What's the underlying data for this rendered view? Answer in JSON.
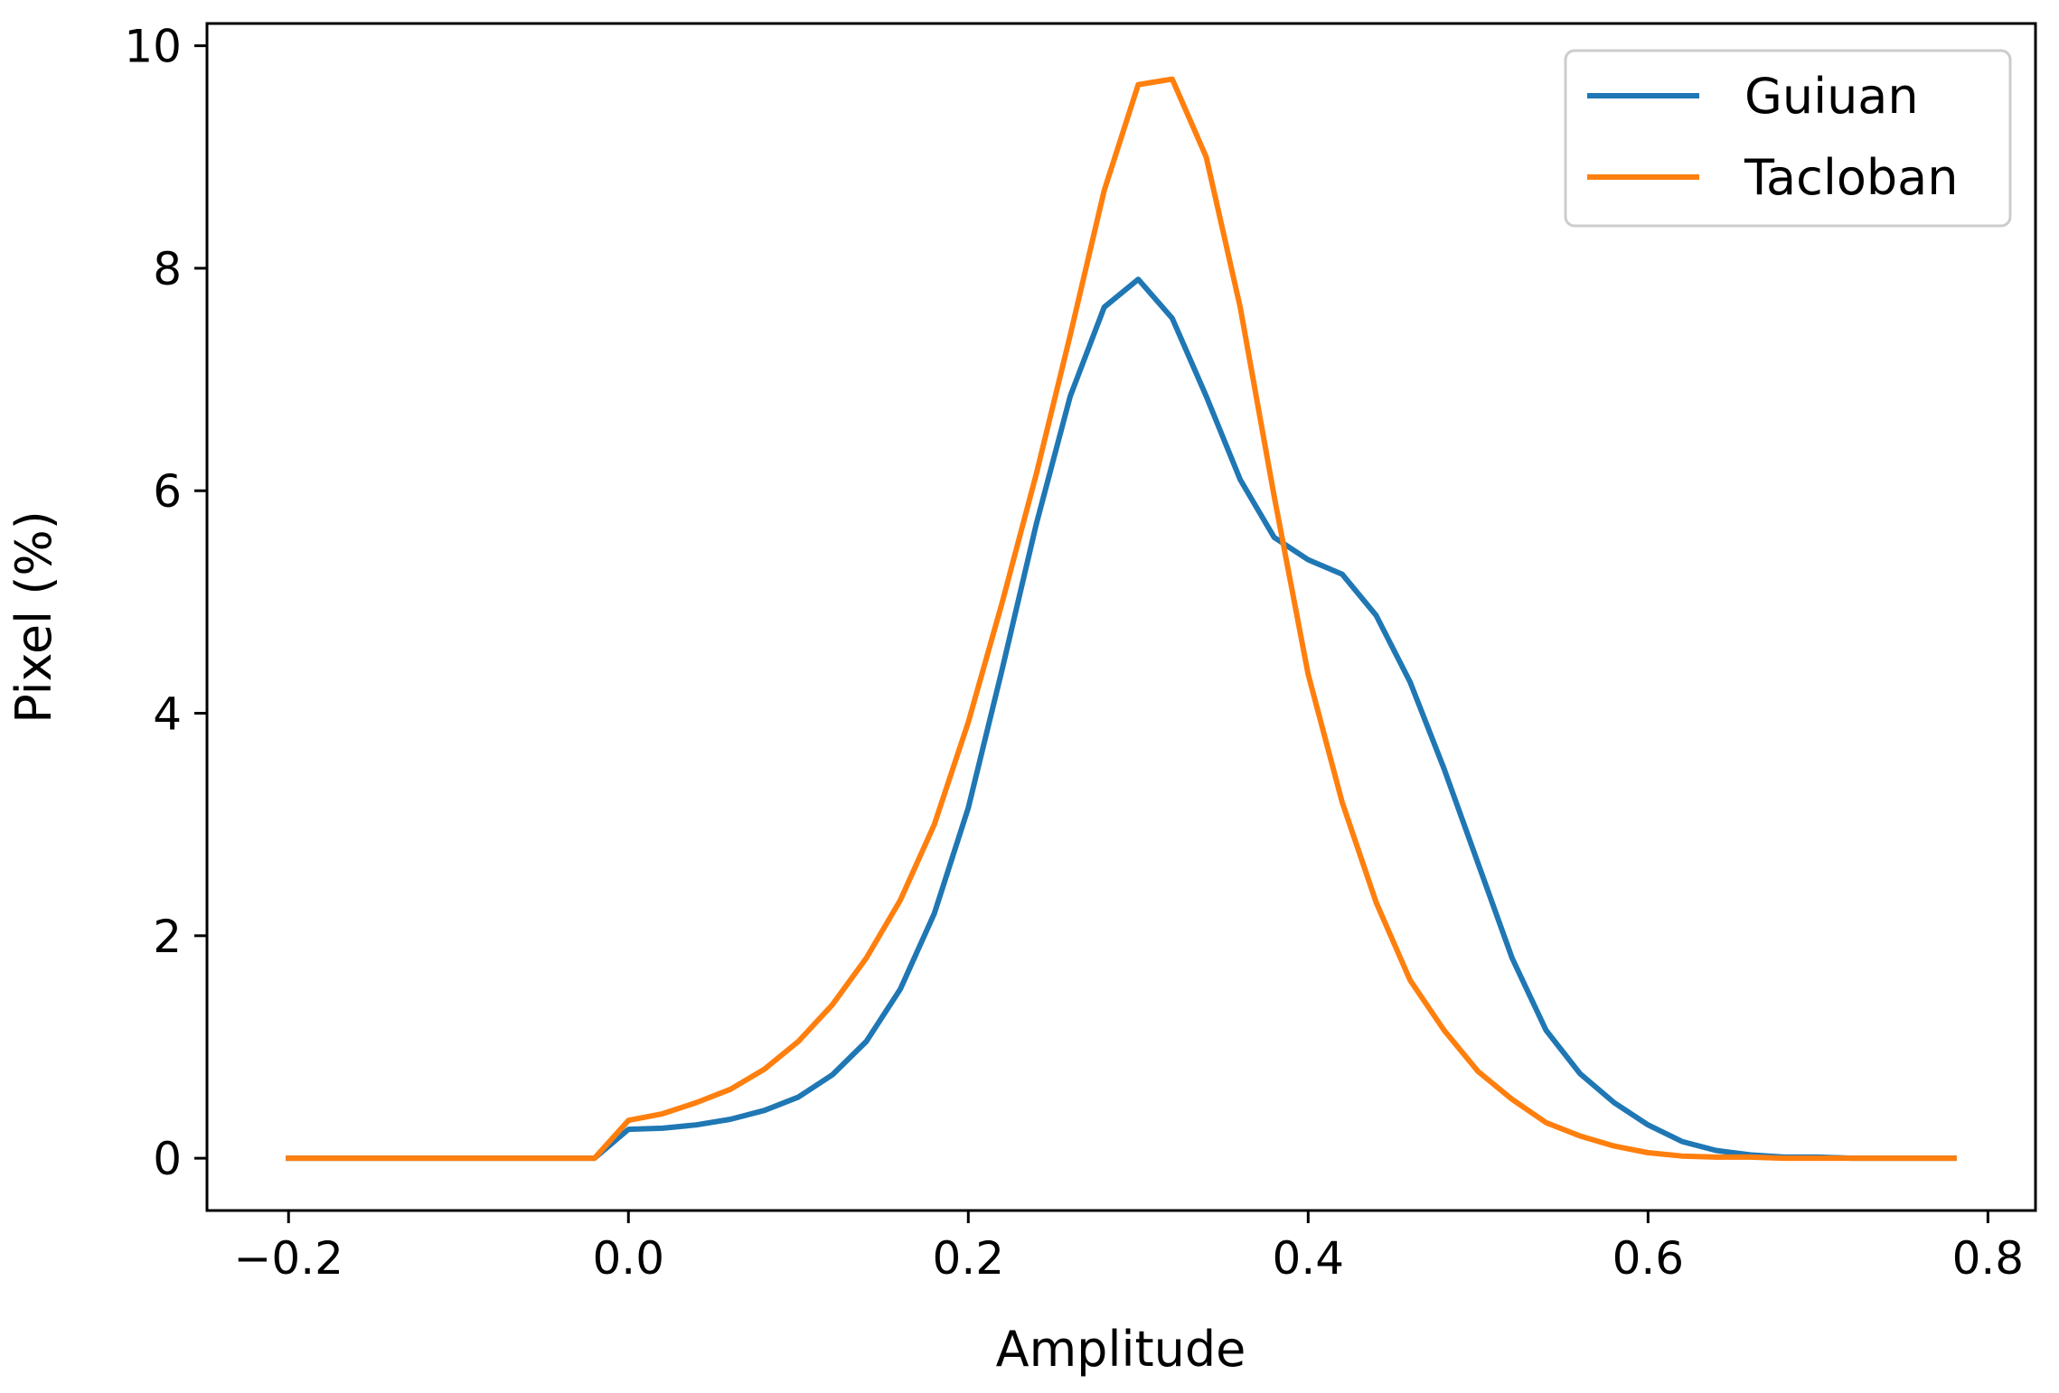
{
  "chart_data": {
    "type": "line",
    "title": "",
    "xlabel": "Amplitude",
    "ylabel": "Pixel (%)",
    "xlim": [
      -0.248,
      0.828
    ],
    "ylim": [
      -0.47,
      10.2
    ],
    "xticks": [
      -0.2,
      0.0,
      0.2,
      0.4,
      0.6,
      0.8
    ],
    "xtick_labels": [
      "−0.2",
      "0.0",
      "0.2",
      "0.4",
      "0.6",
      "0.8"
    ],
    "yticks": [
      0,
      2,
      4,
      6,
      8,
      10
    ],
    "ytick_labels": [
      "0",
      "2",
      "4",
      "6",
      "8",
      "10"
    ],
    "grid": false,
    "legend": "top-right",
    "x": [
      -0.2,
      -0.18,
      -0.16,
      -0.14,
      -0.12,
      -0.1,
      -0.08,
      -0.06,
      -0.04,
      -0.02,
      0.0,
      0.02,
      0.04,
      0.06,
      0.08,
      0.1,
      0.12,
      0.14,
      0.16,
      0.18,
      0.2,
      0.22,
      0.24,
      0.26,
      0.28,
      0.3,
      0.32,
      0.34,
      0.36,
      0.38,
      0.4,
      0.42,
      0.44,
      0.46,
      0.48,
      0.5,
      0.52,
      0.54,
      0.56,
      0.58,
      0.6,
      0.62,
      0.64,
      0.66,
      0.68,
      0.7,
      0.72,
      0.74,
      0.76,
      0.78
    ],
    "series": [
      {
        "name": "Guiuan",
        "color": "#1f77b4",
        "values": [
          0,
          0,
          0,
          0,
          0,
          0,
          0,
          0,
          0,
          0,
          0.26,
          0.27,
          0.3,
          0.35,
          0.43,
          0.55,
          0.75,
          1.05,
          1.52,
          2.2,
          3.15,
          4.4,
          5.7,
          6.85,
          7.65,
          7.9,
          7.55,
          6.85,
          6.1,
          5.58,
          5.38,
          5.25,
          4.88,
          4.28,
          3.5,
          2.65,
          1.8,
          1.15,
          0.76,
          0.5,
          0.3,
          0.15,
          0.07,
          0.03,
          0.01,
          0.01,
          0,
          0,
          0,
          0
        ]
      },
      {
        "name": "Tacloban",
        "color": "#ff7f0e",
        "values": [
          0,
          0,
          0,
          0,
          0,
          0,
          0,
          0,
          0,
          0,
          0.34,
          0.4,
          0.5,
          0.62,
          0.8,
          1.05,
          1.38,
          1.8,
          2.32,
          3.0,
          3.92,
          5.0,
          6.15,
          7.4,
          8.7,
          9.65,
          9.7,
          9.0,
          7.65,
          5.95,
          4.35,
          3.2,
          2.3,
          1.6,
          1.15,
          0.78,
          0.53,
          0.32,
          0.2,
          0.11,
          0.05,
          0.02,
          0.01,
          0.01,
          0,
          0,
          0,
          0,
          0,
          0
        ]
      }
    ]
  }
}
